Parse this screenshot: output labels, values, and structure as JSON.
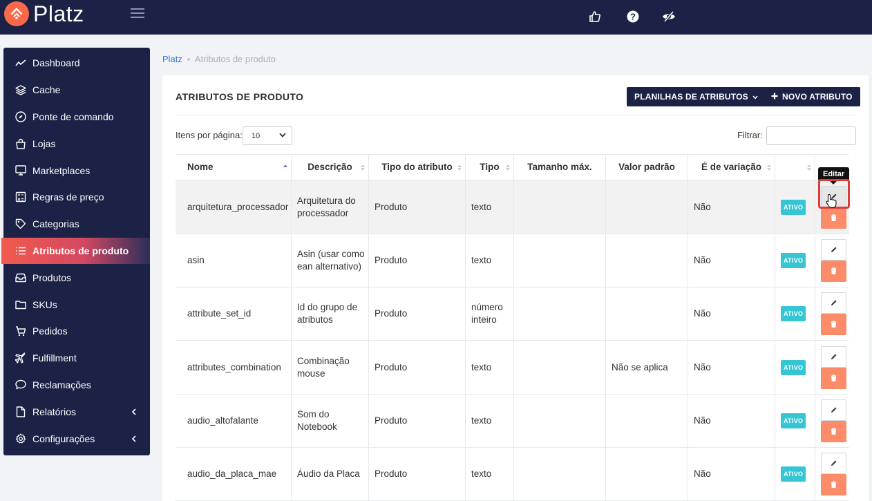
{
  "app": {
    "name": "Platz"
  },
  "sidebar": {
    "items": [
      {
        "label": "Dashboard",
        "icon": "chart-line-icon"
      },
      {
        "label": "Cache",
        "icon": "layers-icon"
      },
      {
        "label": "Ponte de comando",
        "icon": "compass-icon"
      },
      {
        "label": "Lojas",
        "icon": "shopping-bag-icon"
      },
      {
        "label": "Marketplaces",
        "icon": "monitor-icon"
      },
      {
        "label": "Regras de preço",
        "icon": "calculator-icon"
      },
      {
        "label": "Categorias",
        "icon": "tag-icon"
      },
      {
        "label": "Atributos de produto",
        "icon": "list-icon",
        "active": true
      },
      {
        "label": "Produtos",
        "icon": "inbox-icon"
      },
      {
        "label": "SKUs",
        "icon": "folder-icon"
      },
      {
        "label": "Pedidos",
        "icon": "cart-icon"
      },
      {
        "label": "Fulfillment",
        "icon": "plane-icon"
      },
      {
        "label": "Reclamações",
        "icon": "chat-icon"
      },
      {
        "label": "Relatórios",
        "icon": "file-icon",
        "expandable": true
      },
      {
        "label": "Configurações",
        "icon": "gear-icon",
        "expandable": true
      }
    ]
  },
  "breadcrumb": {
    "home": "Platz",
    "current": "Atributos de produto"
  },
  "page": {
    "title": "ATRIBUTOS DE PRODUTO",
    "sheets_button": "PLANILHAS DE ATRIBUTOS",
    "new_button": "NOVO ATRIBUTO",
    "items_per_page_label": "Itens por página:",
    "items_per_page_value": "10",
    "filter_label": "Filtrar:",
    "filter_value": ""
  },
  "table": {
    "headers": [
      "Nome",
      "Descrição",
      "Tipo do atributo",
      "Tipo",
      "Tamanho máx.",
      "Valor padrão",
      "É de variação",
      "",
      ""
    ],
    "rows": [
      {
        "nome": "arquitetura_processador",
        "descricao": "Arquitetura do processador",
        "tipo_atributo": "Produto",
        "tipo": "texto",
        "tamanho": "",
        "valor_padrao": "",
        "variacao": "Não",
        "status": "ATIVO"
      },
      {
        "nome": "asin",
        "descricao": "Asin (usar como ean alternativo)",
        "tipo_atributo": "Produto",
        "tipo": "texto",
        "tamanho": "",
        "valor_padrao": "",
        "variacao": "Não",
        "status": "ATIVO"
      },
      {
        "nome": "attribute_set_id",
        "descricao": "Id do grupo de atributos",
        "tipo_atributo": "Produto",
        "tipo": "número inteiro",
        "tamanho": "",
        "valor_padrao": "",
        "variacao": "Não",
        "status": "ATIVO"
      },
      {
        "nome": "attributes_combination",
        "descricao": "Combinação mouse",
        "tipo_atributo": "Produto",
        "tipo": "texto",
        "tamanho": "",
        "valor_padrao": "Não se aplica",
        "variacao": "Não",
        "status": "ATIVO"
      },
      {
        "nome": "audio_altofalante",
        "descricao": "Som do Notebook",
        "tipo_atributo": "Produto",
        "tipo": "texto",
        "tamanho": "",
        "valor_padrao": "",
        "variacao": "Não",
        "status": "ATIVO"
      },
      {
        "nome": "audio_da_placa_mae",
        "descricao": "Áudio da Placa",
        "tipo_atributo": "Produto",
        "tipo": "texto",
        "tamanho": "",
        "valor_padrao": "",
        "variacao": "Não",
        "status": "ATIVO"
      }
    ]
  },
  "tooltip": {
    "text": "Editar"
  },
  "colors": {
    "navy": "#1c2246",
    "accent": "#f25a4e",
    "badge": "#36c6d3",
    "delete": "#fc8b6a",
    "highlight": "#e03a3a"
  }
}
